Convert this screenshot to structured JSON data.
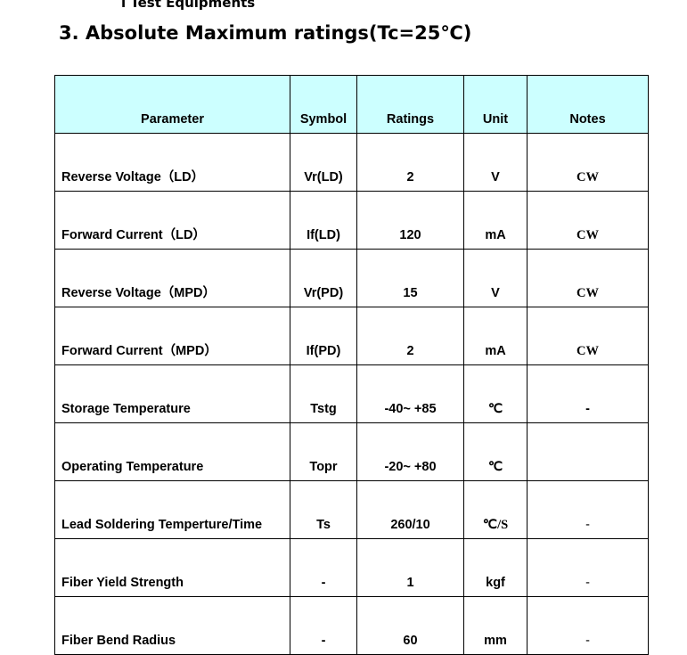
{
  "subheading": "l Test Equipments",
  "title": "3. Absolute Maximum ratings(Tc=25℃)",
  "table": {
    "headers": [
      "Parameter",
      "Symbol",
      "Ratings",
      "Unit",
      "Notes"
    ],
    "rows": [
      [
        "Reverse Voltage（LD）",
        "Vr(LD)",
        "2",
        "V",
        "CW"
      ],
      [
        "Forward Current（LD）",
        "If(LD)",
        "120",
        "mA",
        "CW"
      ],
      [
        "Reverse Voltage（MPD）",
        "Vr(PD)",
        "15",
        "V",
        "CW"
      ],
      [
        "Forward Current（MPD）",
        "If(PD)",
        "2",
        "mA",
        "CW"
      ],
      [
        "Storage Temperature",
        "Tstg",
        "-40~ +85",
        "℃",
        "-"
      ],
      [
        "Operating Temperature",
        "Topr",
        "-20~ +80",
        "℃",
        ""
      ],
      [
        "Lead Soldering Temperture/Time",
        "Ts",
        "260/10",
        "℃/S",
        "-"
      ],
      [
        "Fiber Yield Strength",
        "-",
        "1",
        "kgf",
        "-"
      ],
      [
        "Fiber Bend Radius",
        "-",
        "60",
        "mm",
        "-"
      ]
    ]
  },
  "colors": {
    "header_bg": "#ccffff"
  }
}
